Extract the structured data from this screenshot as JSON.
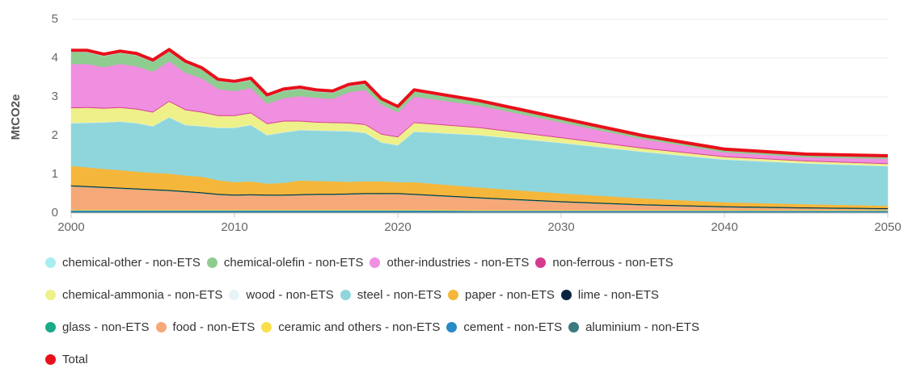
{
  "chart_data": {
    "type": "area",
    "stacked": true,
    "ylabel": "MtCO2e",
    "x": [
      2000,
      2001,
      2002,
      2003,
      2004,
      2005,
      2006,
      2007,
      2008,
      2009,
      2010,
      2011,
      2012,
      2013,
      2014,
      2015,
      2016,
      2017,
      2018,
      2019,
      2020,
      2021,
      2025,
      2030,
      2035,
      2040,
      2045,
      2050
    ],
    "xlim": [
      2000,
      2050
    ],
    "xticks": [
      2000,
      2010,
      2020,
      2030,
      2040,
      2050
    ],
    "ylim": [
      0,
      5
    ],
    "yticks": [
      0,
      1,
      2,
      3,
      4,
      5
    ],
    "grid": true,
    "series": [
      {
        "name": "chemical-other - non-ETS",
        "color": "#a8eef0",
        "values": [
          0.05,
          0.05,
          0.05,
          0.05,
          0.05,
          0.05,
          0.05,
          0.05,
          0.05,
          0.05,
          0.05,
          0.05,
          0.05,
          0.05,
          0.05,
          0.05,
          0.05,
          0.05,
          0.05,
          0.05,
          0.05,
          0.05,
          0.03,
          0.03,
          0.03,
          0.03,
          0.03,
          0.03
        ]
      },
      {
        "name": "chemical-olefin - non-ETS",
        "color": "#8fcc8f",
        "values": [
          0.3,
          0.3,
          0.28,
          0.28,
          0.28,
          0.25,
          0.25,
          0.25,
          0.22,
          0.2,
          0.2,
          0.2,
          0.18,
          0.18,
          0.18,
          0.15,
          0.15,
          0.15,
          0.15,
          0.1,
          0.1,
          0.12,
          0.1,
          0.08,
          0.06,
          0.05,
          0.05,
          0.05
        ]
      },
      {
        "name": "other-industries - non-ETS",
        "color": "#f08ee0",
        "values": [
          1.12,
          1.11,
          1.05,
          1.11,
          1.09,
          1.03,
          1.02,
          0.94,
          0.86,
          0.67,
          0.62,
          0.63,
          0.5,
          0.58,
          0.63,
          0.62,
          0.6,
          0.78,
          0.88,
          0.75,
          0.62,
          0.66,
          0.55,
          0.38,
          0.22,
          0.1,
          0.08,
          0.11
        ]
      },
      {
        "name": "non-ferrous - non-ETS",
        "color": "#d63a8e",
        "values": [
          0.02,
          0.02,
          0.02,
          0.02,
          0.02,
          0.02,
          0.02,
          0.02,
          0.02,
          0.02,
          0.02,
          0.02,
          0.02,
          0.02,
          0.02,
          0.02,
          0.02,
          0.02,
          0.02,
          0.02,
          0.02,
          0.02,
          0.02,
          0.02,
          0.02,
          0.02,
          0.02,
          0.02
        ]
      },
      {
        "name": "chemical-ammonia - non-ETS",
        "color": "#eef08a",
        "values": [
          0.38,
          0.38,
          0.35,
          0.35,
          0.35,
          0.35,
          0.4,
          0.38,
          0.35,
          0.3,
          0.3,
          0.3,
          0.28,
          0.28,
          0.22,
          0.2,
          0.2,
          0.2,
          0.2,
          0.2,
          0.2,
          0.22,
          0.18,
          0.12,
          0.08,
          0.06,
          0.05,
          0.05
        ]
      },
      {
        "name": "wood - non-ETS",
        "color": "#e6f4f8",
        "values": [
          0.01,
          0.01,
          0.01,
          0.01,
          0.01,
          0.01,
          0.01,
          0.01,
          0.01,
          0.01,
          0.01,
          0.01,
          0.01,
          0.01,
          0.01,
          0.01,
          0.01,
          0.01,
          0.01,
          0.01,
          0.01,
          0.01,
          0.01,
          0.01,
          0.01,
          0.01,
          0.01,
          0.01
        ]
      },
      {
        "name": "steel - non-ETS",
        "color": "#8fd6dc",
        "values": [
          1.1,
          1.15,
          1.2,
          1.25,
          1.25,
          1.2,
          1.45,
          1.3,
          1.3,
          1.35,
          1.4,
          1.45,
          1.25,
          1.3,
          1.3,
          1.3,
          1.3,
          1.3,
          1.25,
          1.0,
          0.95,
          1.3,
          1.35,
          1.3,
          1.2,
          1.1,
          1.05,
          1.02
        ]
      },
      {
        "name": "paper - non-ETS",
        "color": "#f5b73b",
        "values": [
          0.5,
          0.48,
          0.46,
          0.45,
          0.43,
          0.42,
          0.42,
          0.4,
          0.4,
          0.35,
          0.32,
          0.33,
          0.28,
          0.3,
          0.35,
          0.33,
          0.32,
          0.3,
          0.3,
          0.3,
          0.28,
          0.3,
          0.25,
          0.2,
          0.15,
          0.1,
          0.08,
          0.06
        ]
      },
      {
        "name": "lime - non-ETS",
        "color": "#0a2440",
        "values": [
          0.02,
          0.02,
          0.02,
          0.02,
          0.02,
          0.02,
          0.02,
          0.02,
          0.02,
          0.02,
          0.02,
          0.02,
          0.02,
          0.02,
          0.02,
          0.02,
          0.02,
          0.02,
          0.02,
          0.02,
          0.02,
          0.02,
          0.02,
          0.02,
          0.02,
          0.02,
          0.02,
          0.02
        ]
      },
      {
        "name": "glass - non-ETS",
        "color": "#1aab8a",
        "values": [
          0.01,
          0.01,
          0.01,
          0.01,
          0.01,
          0.01,
          0.01,
          0.01,
          0.01,
          0.01,
          0.01,
          0.01,
          0.01,
          0.01,
          0.01,
          0.01,
          0.01,
          0.01,
          0.01,
          0.01,
          0.01,
          0.01,
          0.01,
          0.01,
          0.01,
          0.01,
          0.01,
          0.01
        ]
      },
      {
        "name": "food - non-ETS",
        "color": "#f6a878",
        "values": [
          0.6,
          0.58,
          0.56,
          0.54,
          0.52,
          0.5,
          0.48,
          0.45,
          0.42,
          0.38,
          0.36,
          0.37,
          0.36,
          0.36,
          0.37,
          0.38,
          0.38,
          0.39,
          0.4,
          0.4,
          0.4,
          0.38,
          0.3,
          0.2,
          0.12,
          0.07,
          0.04,
          0.02
        ]
      },
      {
        "name": "ceramic and others - non-ETS",
        "color": "#f9e04a",
        "values": [
          0.02,
          0.02,
          0.02,
          0.02,
          0.02,
          0.02,
          0.02,
          0.02,
          0.02,
          0.02,
          0.02,
          0.02,
          0.02,
          0.02,
          0.02,
          0.02,
          0.02,
          0.02,
          0.02,
          0.02,
          0.02,
          0.02,
          0.02,
          0.02,
          0.02,
          0.02,
          0.02,
          0.02
        ]
      },
      {
        "name": "cement - non-ETS",
        "color": "#2a8ac4",
        "values": [
          0.03,
          0.03,
          0.03,
          0.03,
          0.03,
          0.03,
          0.03,
          0.03,
          0.03,
          0.03,
          0.03,
          0.03,
          0.03,
          0.03,
          0.03,
          0.03,
          0.03,
          0.03,
          0.03,
          0.03,
          0.03,
          0.03,
          0.03,
          0.03,
          0.03,
          0.03,
          0.03,
          0.03
        ]
      },
      {
        "name": "aluminium - non-ETS",
        "color": "#3a7a80",
        "values": [
          0.04,
          0.04,
          0.04,
          0.04,
          0.04,
          0.04,
          0.04,
          0.04,
          0.04,
          0.04,
          0.04,
          0.04,
          0.04,
          0.04,
          0.04,
          0.04,
          0.04,
          0.04,
          0.04,
          0.04,
          0.04,
          0.04,
          0.03,
          0.03,
          0.03,
          0.03,
          0.03,
          0.03
        ]
      },
      {
        "name": "Total",
        "color": "#e8101a",
        "type": "line",
        "values": [
          4.2,
          4.2,
          4.1,
          4.18,
          4.12,
          3.95,
          4.22,
          3.92,
          3.75,
          3.45,
          3.4,
          3.48,
          3.05,
          3.2,
          3.25,
          3.18,
          3.15,
          3.32,
          3.38,
          2.95,
          2.75,
          3.18,
          2.9,
          2.45,
          2.0,
          1.65,
          1.52,
          1.48
        ]
      }
    ]
  }
}
